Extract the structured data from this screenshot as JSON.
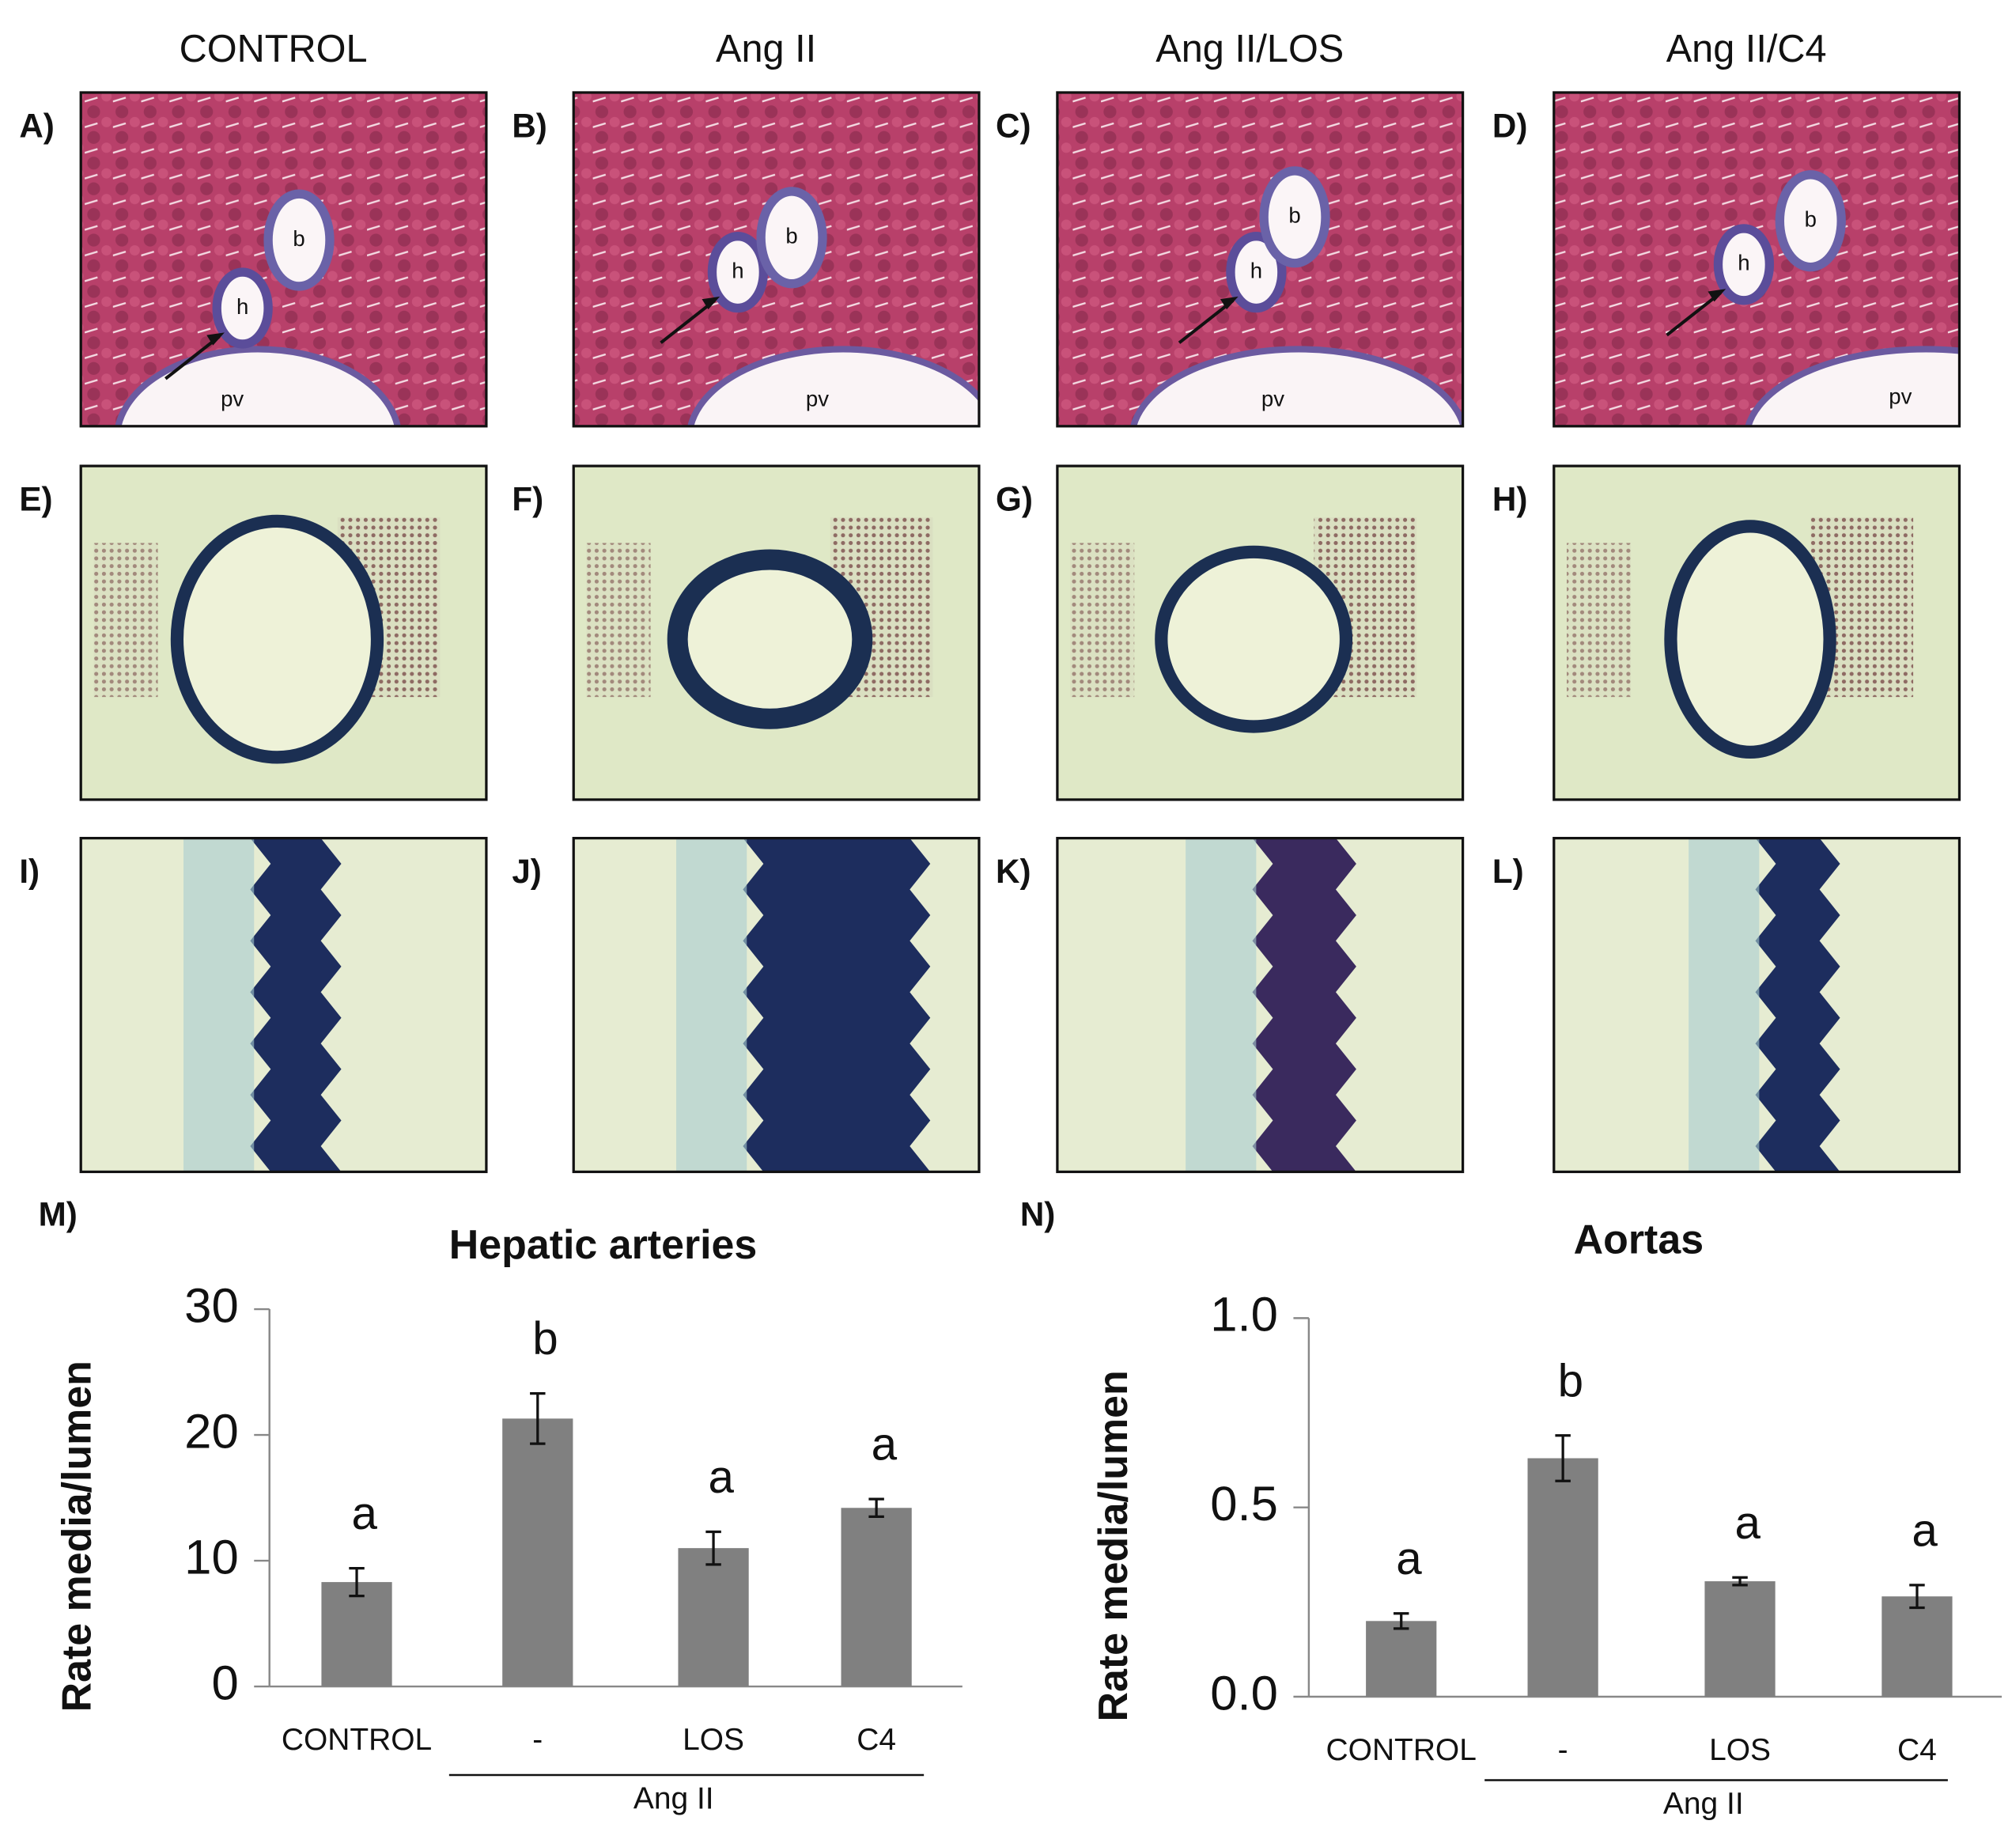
{
  "column_headers": [
    "CONTROL",
    "Ang II",
    "Ang II/LOS",
    "Ang II/C4"
  ],
  "panels": [
    {
      "label": "A)",
      "annotations": [
        "h",
        "b",
        "pv"
      ]
    },
    {
      "label": "B)",
      "annotations": [
        "h",
        "b",
        "pv"
      ]
    },
    {
      "label": "C)",
      "annotations": [
        "h",
        "b",
        "pv"
      ]
    },
    {
      "label": "D)",
      "annotations": [
        "h",
        "b",
        "pv"
      ]
    },
    {
      "label": "E)"
    },
    {
      "label": "F)"
    },
    {
      "label": "G)"
    },
    {
      "label": "H)"
    },
    {
      "label": "I)"
    },
    {
      "label": "J)"
    },
    {
      "label": "K)"
    },
    {
      "label": "L)"
    }
  ],
  "chart_data": [
    {
      "type": "bar",
      "panel_label": "M)",
      "title": "Hepatic arteries",
      "y_label": "Rate media/lumen",
      "categories": [
        "CONTROL",
        "-",
        "LOS",
        "C4"
      ],
      "group_label": "Ang II",
      "values": [
        8.3,
        21.3,
        11.0,
        14.2
      ],
      "errors": [
        1.1,
        2.0,
        1.3,
        0.7
      ],
      "annotations": [
        "a",
        "b",
        "a",
        "a"
      ],
      "color": "#808080",
      "ylim": [
        0,
        30
      ],
      "yticks": [
        0,
        10,
        20,
        30
      ]
    },
    {
      "type": "bar",
      "panel_label": "N)",
      "title": "Aortas",
      "y_label": "Rate media/lumen",
      "categories": [
        "CONTROL",
        "-",
        "LOS",
        "C4"
      ],
      "group_label": "Ang II",
      "values": [
        0.2,
        0.63,
        0.305,
        0.265
      ],
      "errors": [
        0.02,
        0.06,
        0.01,
        0.03
      ],
      "annotations": [
        "a",
        "b",
        "a",
        "a"
      ],
      "color": "#808080",
      "ylim": [
        0,
        1.0
      ],
      "yticks": [
        {
          "value": 0,
          "label": "0.0"
        },
        0.5,
        {
          "value": 1.0,
          "label": "1.0"
        }
      ]
    }
  ]
}
